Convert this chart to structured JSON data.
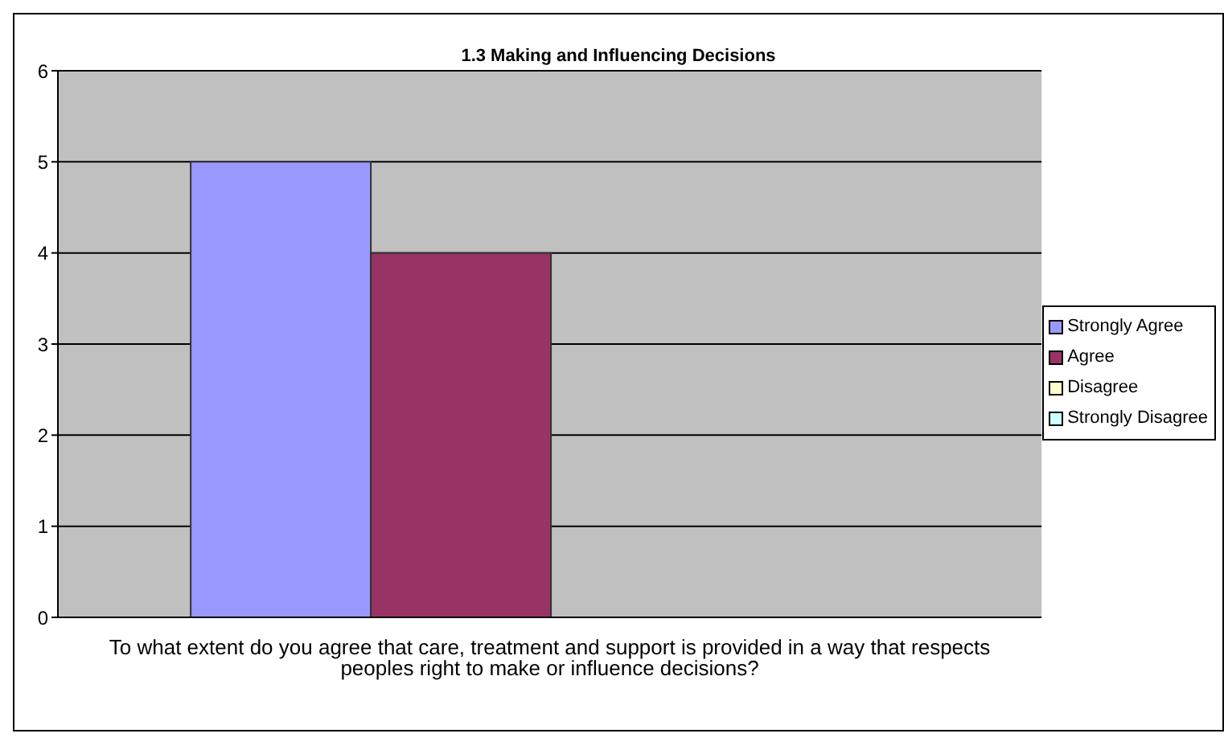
{
  "chart_data": {
    "type": "bar",
    "title": "1.3 Making and Influencing Decisions",
    "categories": [
      "To what extent do you agree that care, treatment and support is provided in a way that respects peoples right to make or influence decisions?"
    ],
    "series": [
      {
        "name": "Strongly Agree",
        "color": "#9999ff",
        "values": [
          5
        ]
      },
      {
        "name": "Agree",
        "color": "#993366",
        "values": [
          4
        ]
      },
      {
        "name": "Disagree",
        "color": "#ffffcc",
        "values": [
          0
        ]
      },
      {
        "name": "Strongly Disagree",
        "color": "#ccffff",
        "values": [
          0
        ]
      }
    ],
    "ylim": [
      0,
      6
    ],
    "yticks": [
      0,
      1,
      2,
      3,
      4,
      5,
      6
    ],
    "grid": "y",
    "legend": "right"
  }
}
